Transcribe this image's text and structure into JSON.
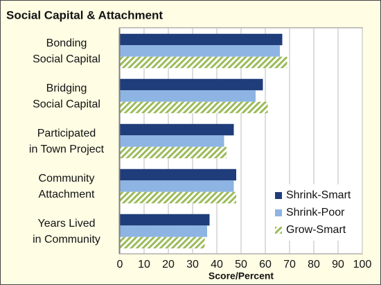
{
  "chart_data": {
    "type": "bar",
    "orientation": "horizontal",
    "title": "Social Capital & Attachment",
    "xlabel": "Score/Percent",
    "categories": [
      "Bonding\nSocial Capital",
      "Bridging\nSocial Capital",
      "Participated\nin Town Project",
      "Community\nAttachment",
      "Years Lived\nin Community"
    ],
    "series": [
      {
        "name": "Shrink-Smart",
        "color": "#1f3d7a",
        "values": [
          67,
          59,
          47,
          48,
          37
        ]
      },
      {
        "name": "Shrink-Poor",
        "color": "#8db4e2",
        "values": [
          66,
          56,
          43,
          47,
          36
        ]
      },
      {
        "name": "Grow-Smart",
        "color": "#9bbb59",
        "pattern": "hatch",
        "values": [
          69,
          61,
          44,
          48,
          35
        ]
      }
    ],
    "xlim": [
      0,
      100
    ],
    "xticks": [
      0,
      10,
      20,
      30,
      40,
      50,
      60,
      70,
      80,
      90,
      100
    ],
    "grid": true,
    "legend": "lower right"
  }
}
